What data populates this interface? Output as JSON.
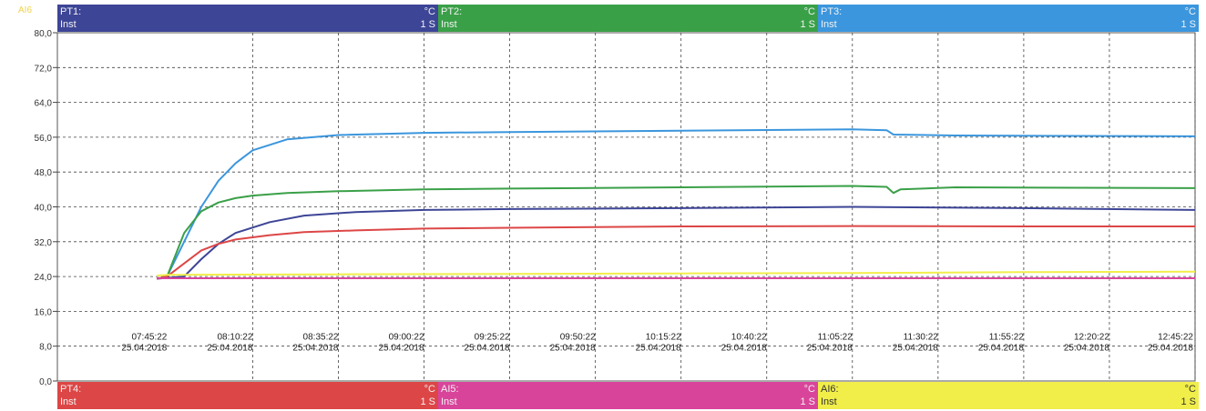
{
  "axis_tag": "AI6",
  "channels_top": [
    {
      "name": "PT1:",
      "unit": "°C",
      "mode": "Inst",
      "interval": "1 S",
      "color": "#3d4596"
    },
    {
      "name": "PT2:",
      "unit": "°C",
      "mode": "Inst",
      "interval": "1 S",
      "color": "#3aa048"
    },
    {
      "name": "PT3:",
      "unit": "°C",
      "mode": "Inst",
      "interval": "1 S",
      "color": "#3b96dd"
    }
  ],
  "channels_bottom": [
    {
      "name": "PT4:",
      "unit": "°C",
      "mode": "Inst",
      "interval": "1 S",
      "color": "#dd4646"
    },
    {
      "name": "AI5:",
      "unit": "°C",
      "mode": "Inst",
      "interval": "1 S",
      "color": "#d9449b"
    },
    {
      "name": "AI6:",
      "unit": "°C",
      "mode": "Inst",
      "interval": "1 S",
      "color": "#f1ee4a"
    }
  ],
  "chart_data": {
    "type": "line",
    "ylim": [
      0,
      80
    ],
    "y_ticks": [
      "0,0",
      "8,0",
      "16,0",
      "24,0",
      "32,0",
      "40,0",
      "48,0",
      "56,0",
      "64,0",
      "72,0",
      "80,0"
    ],
    "x_ticks": [
      {
        "time": "07:45:22",
        "date": "25.04.2018"
      },
      {
        "time": "08:10:22",
        "date": "25.04.2018"
      },
      {
        "time": "08:35:22",
        "date": "25.04.2018"
      },
      {
        "time": "09:00:22",
        "date": "25.04.2018"
      },
      {
        "time": "09:25:22",
        "date": "25.04.2018"
      },
      {
        "time": "09:50:22",
        "date": "25.04.2018"
      },
      {
        "time": "10:15:22",
        "date": "25.04.2018"
      },
      {
        "time": "10:40:22",
        "date": "25.04.2018"
      },
      {
        "time": "11:05:22",
        "date": "25.04.2018"
      },
      {
        "time": "11:30:22",
        "date": "25.04.2018"
      },
      {
        "time": "11:55:22",
        "date": "25.04.2018"
      },
      {
        "time": "12:20:22",
        "date": "25.04.2018"
      },
      {
        "time": "12:45:22",
        "date": "25.04.2018"
      }
    ],
    "grid": true,
    "x_unit": "minutes after 07:45:22",
    "series": [
      {
        "name": "PT3:",
        "color": "#3b96dd",
        "x": [
          -3,
          0,
          5,
          10,
          15,
          20,
          25,
          35,
          50,
          75,
          100,
          150,
          200,
          210,
          212,
          230,
          300
        ],
        "y": [
          23.5,
          24,
          32,
          40,
          46,
          50,
          53,
          55.5,
          56.5,
          57,
          57.2,
          57.5,
          57.8,
          57.6,
          56.6,
          56.4,
          56.2
        ]
      },
      {
        "name": "PT2:",
        "color": "#3aa048",
        "x": [
          -3,
          0,
          5,
          10,
          15,
          20,
          25,
          35,
          50,
          75,
          100,
          150,
          200,
          210,
          212,
          214,
          230,
          300
        ],
        "y": [
          23.5,
          24,
          34,
          39,
          41,
          42,
          42.6,
          43.2,
          43.6,
          44,
          44.2,
          44.5,
          44.8,
          44.6,
          43.2,
          44,
          44.5,
          44.3
        ]
      },
      {
        "name": "PT1:",
        "color": "#3d4596",
        "x": [
          -3,
          5,
          10,
          15,
          20,
          30,
          40,
          55,
          75,
          100,
          150,
          200,
          250,
          300
        ],
        "y": [
          23.5,
          24,
          28,
          31.5,
          34,
          36.5,
          38,
          38.8,
          39.3,
          39.5,
          39.7,
          40,
          39.7,
          39.3
        ]
      },
      {
        "name": "PT4:",
        "color": "#dd4646",
        "x": [
          -3,
          0,
          5,
          10,
          15,
          20,
          30,
          40,
          55,
          75,
          100,
          150,
          200,
          250,
          300
        ],
        "y": [
          23.5,
          24,
          27,
          30,
          31.5,
          32.5,
          33.5,
          34.2,
          34.6,
          35,
          35.2,
          35.5,
          35.6,
          35.5,
          35.5
        ]
      },
      {
        "name": "AI5:",
        "color": "#d9449b",
        "x": [
          -3,
          300
        ],
        "y": [
          23.6,
          23.6
        ]
      },
      {
        "name": "AI6:",
        "color": "#f1ee4a",
        "x": [
          -3,
          0,
          50,
          100,
          150,
          200,
          250,
          300
        ],
        "y": [
          24.2,
          24.4,
          24.5,
          24.6,
          24.7,
          24.8,
          25,
          25.1
        ]
      }
    ]
  }
}
